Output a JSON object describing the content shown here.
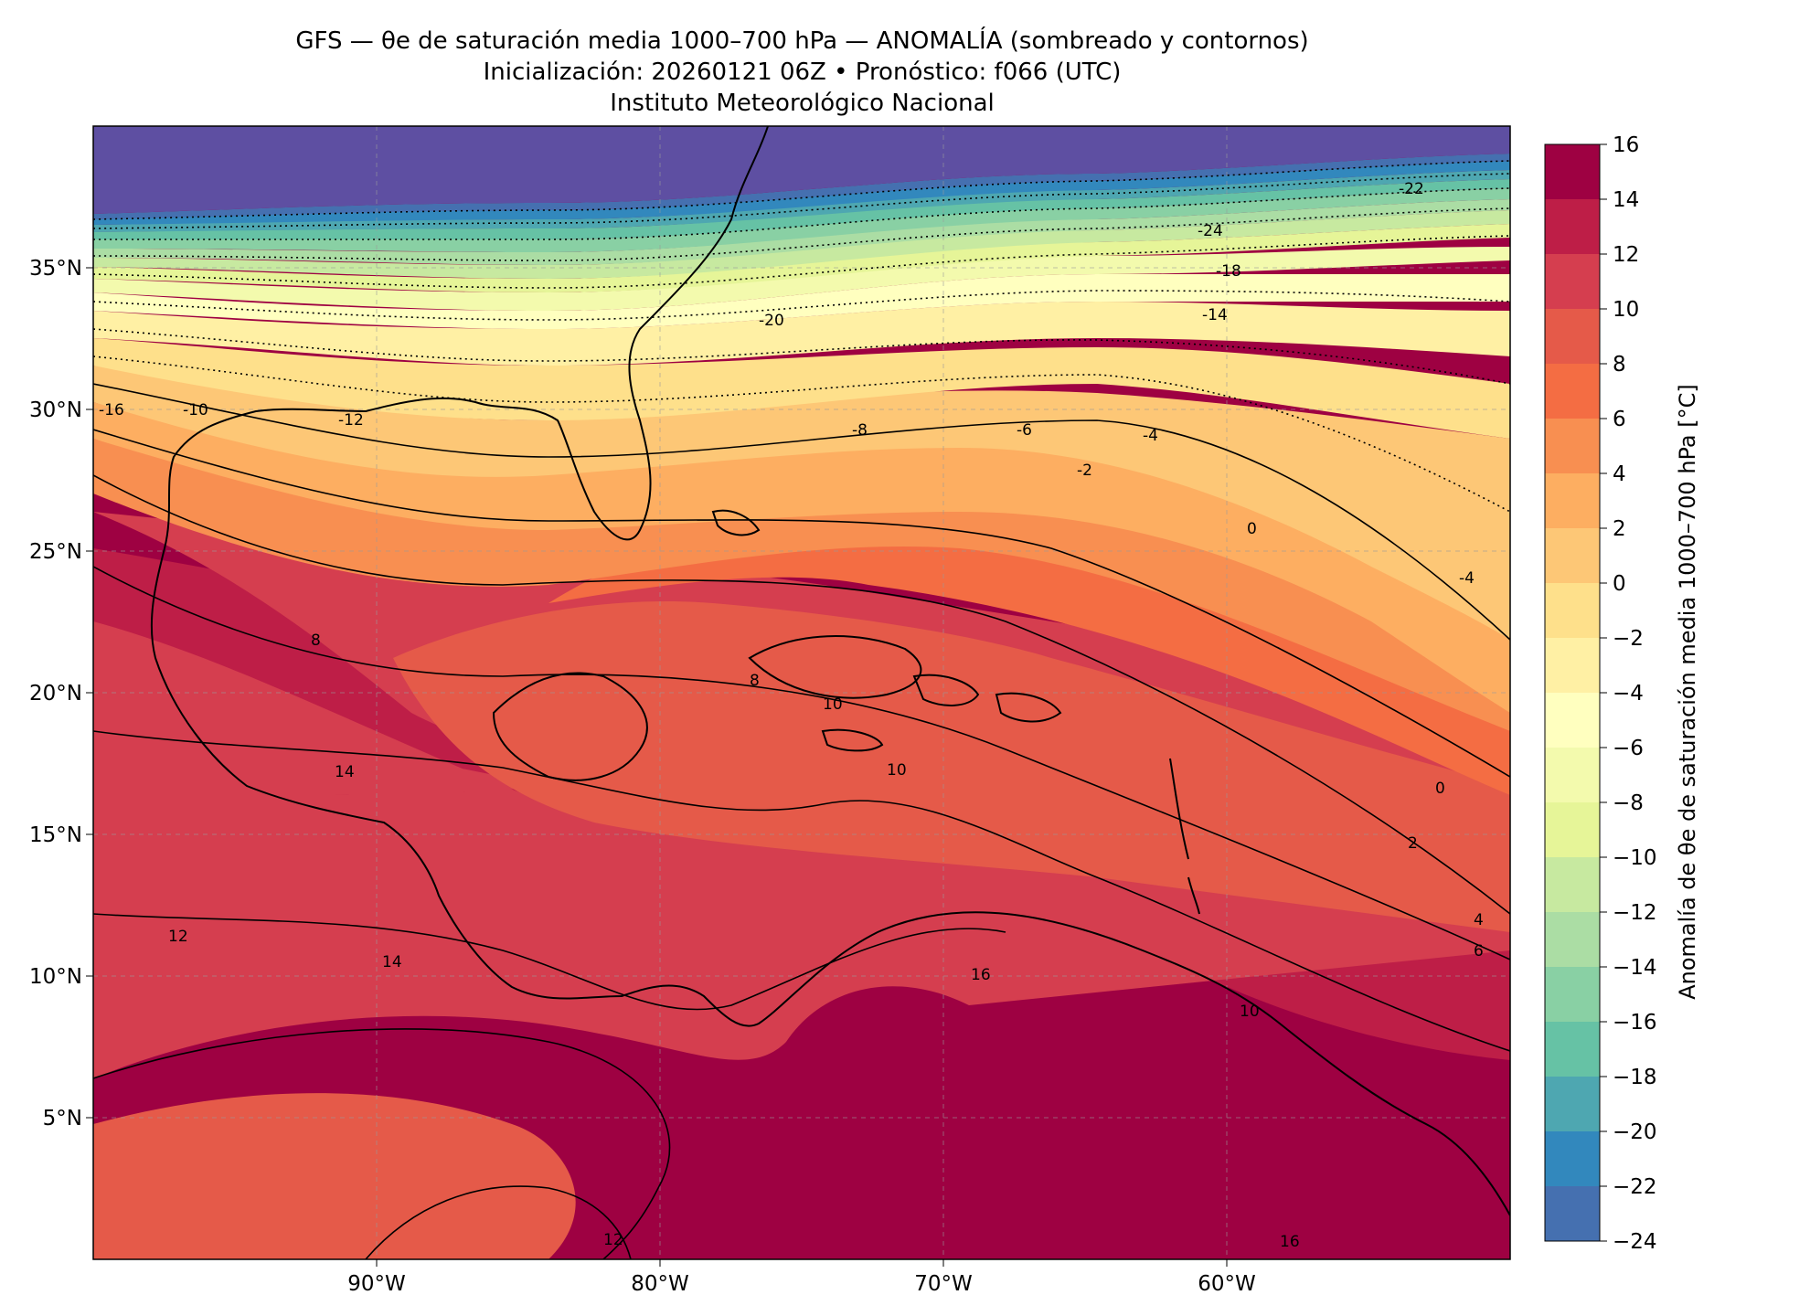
{
  "header": {
    "title_line1": "GFS — θe de saturación media 1000–700 hPa — ANOMALÍA (sombreado y contornos)",
    "title_line2": "Inicialización: 20260121 06Z   •   Pronóstico: f066 (UTC)",
    "title_line3": "Instituto Meteorológico Nacional"
  },
  "map": {
    "lon_range": [
      -100,
      -50
    ],
    "lat_range": [
      0,
      40
    ],
    "lon_ticks": [
      "90°W",
      "80°W",
      "70°W",
      "60°W"
    ],
    "lat_ticks": [
      "5°N",
      "10°N",
      "15°N",
      "20°N",
      "25°N",
      "30°N",
      "35°N"
    ],
    "gridlines": true,
    "gridline_style": "dashed gray",
    "contour_labels": [
      "-24",
      "-22",
      "-20",
      "-18",
      "-16",
      "-14",
      "-12",
      "-10",
      "-8",
      "-6",
      "-4",
      "-2",
      "0",
      "0",
      "-4",
      "2",
      "4",
      "6",
      "8",
      "8",
      "10",
      "10",
      "10",
      "12",
      "12",
      "14",
      "14",
      "16",
      "16"
    ]
  },
  "colorbar": {
    "label": "Anomalía de θe de saturación media 1000–700 hPa [°C]",
    "ticks": [
      "16",
      "14",
      "12",
      "10",
      "8",
      "6",
      "4",
      "2",
      "0",
      "−2",
      "−4",
      "−6",
      "−8",
      "−10",
      "−12",
      "−14",
      "−16",
      "−18",
      "−20",
      "−22",
      "−24"
    ],
    "colors": [
      "#9e0142",
      "#be1e47",
      "#d53e4f",
      "#e55a49",
      "#f46d43",
      "#f88f51",
      "#fdae61",
      "#fdc776",
      "#fee08b",
      "#fff0a4",
      "#ffffbf",
      "#f3faad",
      "#e6f598",
      "#c7e9a0",
      "#abdda4",
      "#89d0a4",
      "#66c2a5",
      "#4ea7b1",
      "#3288bd",
      "#4570b0",
      "#5e4fa2"
    ]
  }
}
